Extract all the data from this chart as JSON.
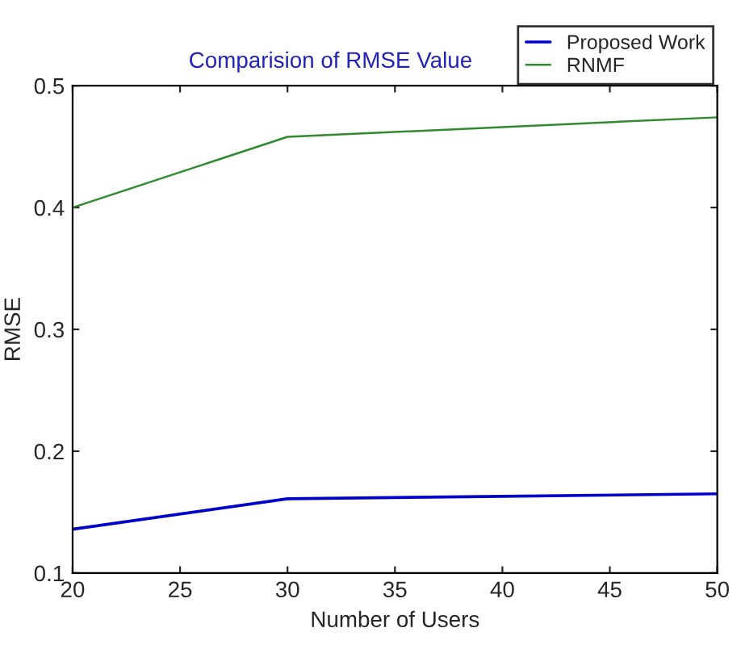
{
  "chart_data": {
    "type": "line",
    "title": "Comparision of RMSE Value",
    "xlabel": "Number of Users",
    "ylabel": "RMSE",
    "x": [
      20,
      30,
      40,
      50
    ],
    "series": [
      {
        "name": "Proposed Work",
        "color": "#0000cc",
        "values": [
          0.136,
          0.161,
          0.163,
          0.165
        ]
      },
      {
        "name": "RNMF",
        "color": "#2e8b2e",
        "values": [
          0.4,
          0.458,
          0.466,
          0.474
        ]
      }
    ],
    "xlim": [
      20,
      50
    ],
    "xticks": [
      20,
      25,
      30,
      35,
      40,
      45,
      50
    ],
    "ylim": [
      0.1,
      0.5
    ],
    "yticks": [
      0.1,
      0.2,
      0.3,
      0.4,
      0.5
    ],
    "grid": false,
    "legend": "top right",
    "line_style": "solid",
    "marker": "none"
  }
}
